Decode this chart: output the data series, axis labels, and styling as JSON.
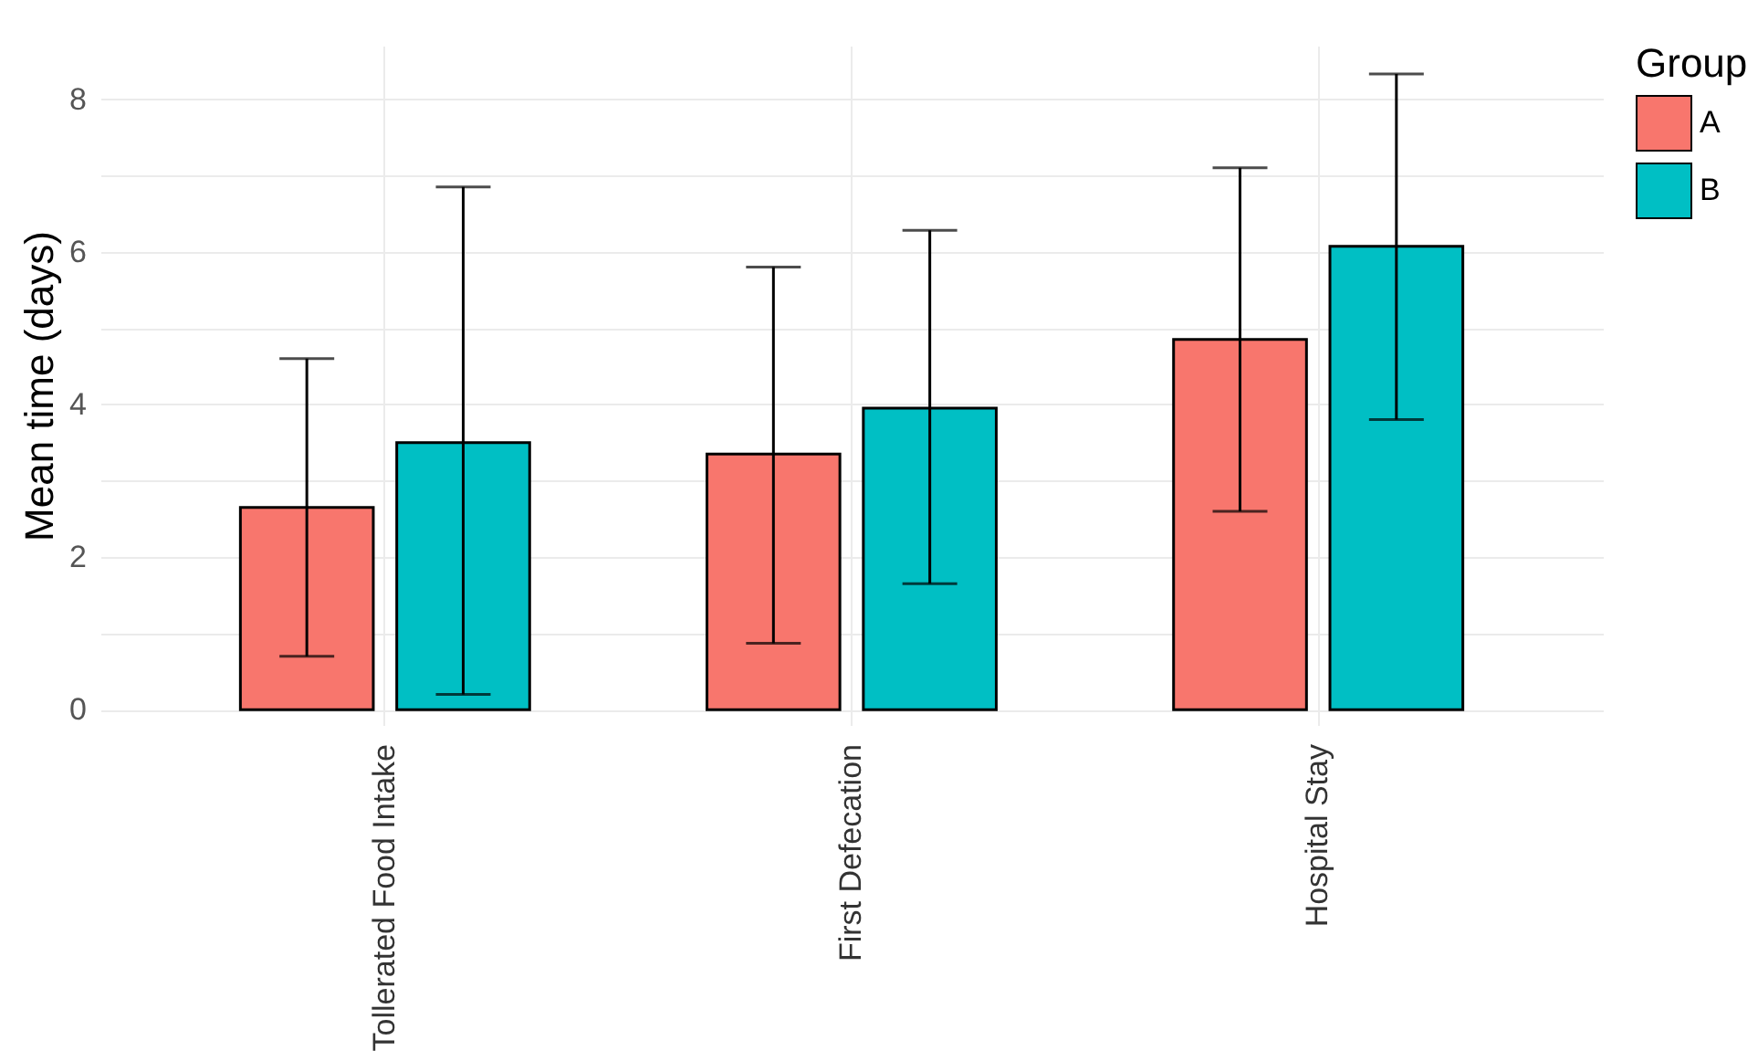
{
  "chart_data": {
    "type": "bar",
    "ylabel": "Mean time (days)",
    "legend_title": "Group",
    "categories": [
      "Tollerated Food Intake",
      "First Defecation",
      "Hospital Stay"
    ],
    "series": [
      {
        "name": "A",
        "color": "#f8766d",
        "values": [
          2.65,
          3.35,
          4.85
        ],
        "errors": [
          [
            0.7,
            4.6
          ],
          [
            0.87,
            5.8
          ],
          [
            2.6,
            7.1
          ]
        ]
      },
      {
        "name": "B",
        "color": "#00bfc4",
        "values": [
          3.5,
          3.95,
          6.07
        ],
        "errors": [
          [
            0.2,
            6.85
          ],
          [
            1.65,
            6.28
          ],
          [
            3.8,
            8.33
          ]
        ]
      }
    ],
    "ylim": [
      -0.2,
      8.7
    ],
    "yticks": [
      0,
      {
        "value": 1,
        "label": null
      },
      2,
      {
        "value": 3,
        "label": null
      },
      4,
      {
        "value": 5,
        "label": null
      },
      6,
      {
        "value": 7,
        "label": null
      },
      8
    ],
    "grid": true,
    "legend": "right"
  }
}
